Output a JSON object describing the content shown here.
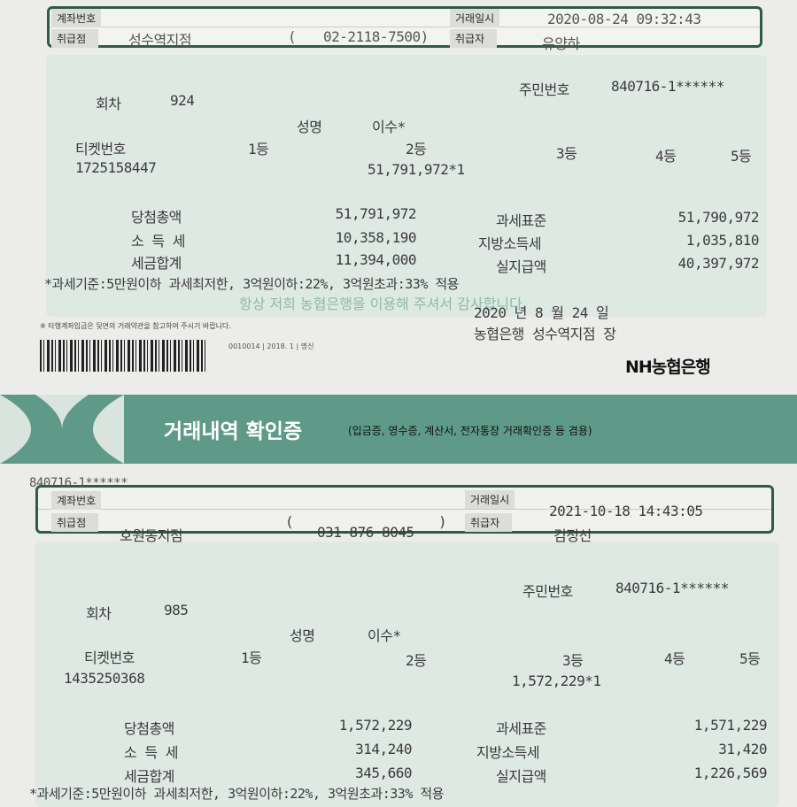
{
  "receipt1": {
    "labels": {
      "account": "계좌번호",
      "branch": "취급점",
      "datetime": "거래일시",
      "handler": "취급자"
    },
    "branch": "성수역지점",
    "phone_open": "(",
    "phone": "02-2118-7500)",
    "datetime": "2020-08-24 09:32:43",
    "handler": "유양하",
    "id_label": "주민번호",
    "id_value": "840716-1******",
    "round_label": "회차",
    "round": "924",
    "name_label": "성명",
    "name": "이수*",
    "ticket_label": "티켓번호",
    "ranks": [
      "1등",
      "2등",
      "3등",
      "4등",
      "5등"
    ],
    "ticket": "1725158447",
    "prize": "51,791,972*1",
    "rows": [
      {
        "label": "당첨총액",
        "value": "51,791,972",
        "label2": "과세표준",
        "value2": "51,790,972"
      },
      {
        "label": "소 득 세",
        "value": "10,358,190",
        "label2": "지방소득세",
        "value2": "1,035,810"
      },
      {
        "label": "세금합계",
        "value": "11,394,000",
        "label2": "실지급액",
        "value2": "40,397,972"
      }
    ],
    "tax_note": "*과세기준:5만원이하 과세최저한, 3억원이하:22%, 3억원초과:33% 적용",
    "thanks": "항상 저희 농협은행을 이용해 주셔서 감사합니다.",
    "date_line": "2020 년 8 월 24 일",
    "signature": "농협은행 성수역지점 장",
    "fine_print": "※ 타행계좌입금은 뒷면의 거래약관을 참고하여 주시기 바랍니다.",
    "form_code": "0010014 | 2018. 1 | 명신",
    "logo": "NH농협은행"
  },
  "banner": {
    "title": "거래내역 확인증",
    "subtitle": "(입금증, 영수증, 계산서, 전자통장 거래확인증 등 겸용)",
    "color": "#5e9a87"
  },
  "receipt2": {
    "overprint_id": "840716-1******",
    "labels": {
      "account": "계좌번호",
      "branch": "취급점",
      "datetime": "거래일시",
      "handler": "취급자"
    },
    "branch": "호원동지점",
    "phone_open": "(",
    "phone": "031-876-8045",
    "phone_close": ")",
    "datetime": "2021-10-18 14:43:05",
    "handler": "김정선",
    "id_label": "주민번호",
    "id_value": "840716-1******",
    "round_label": "회차",
    "round": "985",
    "name_label": "성명",
    "name": "이수*",
    "ticket_label": "티켓번호",
    "ranks": [
      "1등",
      "2등",
      "3등",
      "4등",
      "5등"
    ],
    "ticket": "1435250368",
    "prize": "1,572,229*1",
    "rows": [
      {
        "label": "당첨총액",
        "value": "1,572,229",
        "label2": "과세표준",
        "value2": "1,571,229"
      },
      {
        "label": "소 득 세",
        "value": "314,240",
        "label2": "지방소득세",
        "value2": "31,420"
      },
      {
        "label": "세금합계",
        "value": "345,660",
        "label2": "실지급액",
        "value2": "1,226,569"
      }
    ],
    "tax_note": "*과세기준:5만원이하 과세최저한, 3억원이하:22%, 3억원초과:33% 적용"
  }
}
